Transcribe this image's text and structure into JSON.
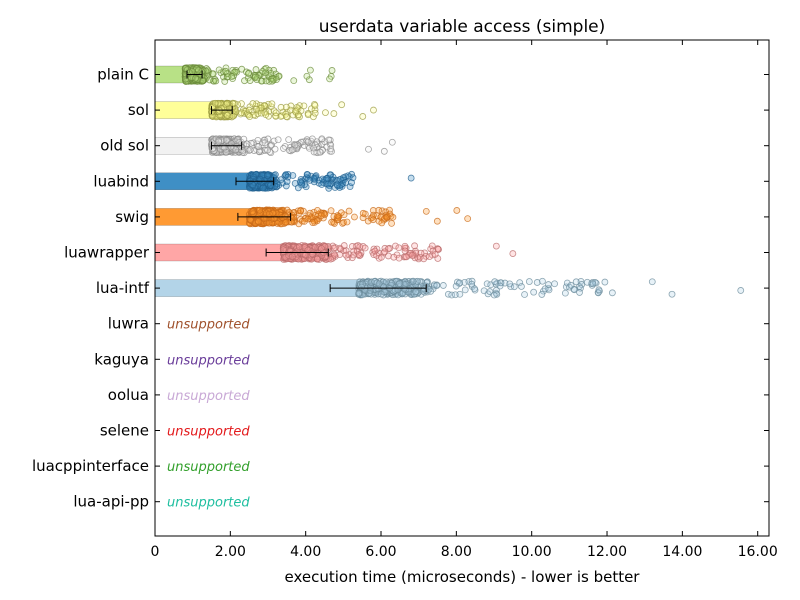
{
  "chart_data": {
    "type": "bar",
    "orientation": "horizontal",
    "title": "userdata variable access (simple)",
    "xlabel": "execution time (microseconds) - lower is better",
    "ylabel": "",
    "xlim": [
      0,
      16.3
    ],
    "xticks": [
      0,
      2,
      4,
      6,
      8,
      10,
      12,
      14,
      16
    ],
    "xtick_labels": [
      "0",
      "2.00",
      "4.00",
      "6.00",
      "8.00",
      "10.00",
      "12.00",
      "14.00",
      "16.00"
    ],
    "grid": false,
    "legend": "none",
    "unsupported_label": "unsupported",
    "categories": [
      {
        "name": "plain C",
        "mean": 0.95,
        "err_low": 0.85,
        "err_high": 1.25,
        "color": "#b8e186",
        "point_color": "#6a8a3a",
        "samples_min": 0.8,
        "samples_max": 4.7,
        "supported": true
      },
      {
        "name": "sol",
        "mean": 1.55,
        "err_low": 1.5,
        "err_high": 2.05,
        "color": "#ffff99",
        "point_color": "#9a9a40",
        "samples_min": 1.5,
        "samples_max": 5.8,
        "supported": true
      },
      {
        "name": "old sol",
        "mean": 1.6,
        "err_low": 1.5,
        "err_high": 2.3,
        "color": "#f2f2f2",
        "point_color": "#8a8a8a",
        "samples_min": 1.5,
        "samples_max": 6.3,
        "supported": true
      },
      {
        "name": "luabind",
        "mean": 2.5,
        "err_low": 2.15,
        "err_high": 3.15,
        "color": "#3f8fc5",
        "point_color": "#1f5f8f",
        "samples_min": 2.5,
        "samples_max": 6.8,
        "supported": true
      },
      {
        "name": "swig",
        "mean": 2.55,
        "err_low": 2.2,
        "err_high": 3.6,
        "color": "#ff9a33",
        "point_color": "#c86a18",
        "samples_min": 2.5,
        "samples_max": 8.3,
        "supported": true
      },
      {
        "name": "luawrapper",
        "mean": 3.4,
        "err_low": 2.95,
        "err_high": 4.6,
        "color": "#ffa6a6",
        "point_color": "#b86a6a",
        "samples_min": 3.4,
        "samples_max": 9.5,
        "supported": true
      },
      {
        "name": "lua-intf",
        "mean": 5.45,
        "err_low": 4.65,
        "err_high": 7.2,
        "color": "#b3d4e8",
        "point_color": "#6a8a9a",
        "samples_min": 5.4,
        "samples_max": 15.55,
        "supported": true
      },
      {
        "name": "luwra",
        "supported": false,
        "text_color": "#a0522d"
      },
      {
        "name": "kaguya",
        "supported": false,
        "text_color": "#6a3d9a"
      },
      {
        "name": "oolua",
        "supported": false,
        "text_color": "#c9a9d6"
      },
      {
        "name": "selene",
        "supported": false,
        "text_color": "#e31a1c"
      },
      {
        "name": "luacppinterface",
        "supported": false,
        "text_color": "#33a02c"
      },
      {
        "name": "lua-api-pp",
        "supported": false,
        "text_color": "#1fbfa0"
      }
    ]
  }
}
